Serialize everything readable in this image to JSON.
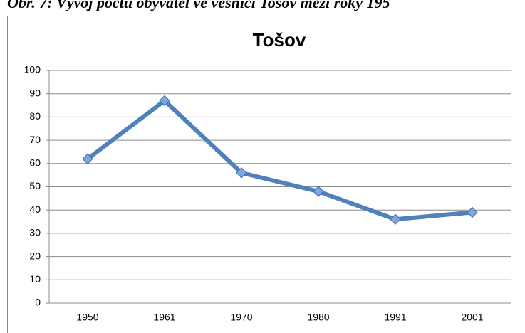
{
  "caption": "Obr. 7: Vývoj počtu obyvatel ve vesnici Tošov mezi roky 195",
  "chart_data": {
    "type": "line",
    "title": "Tošov",
    "categories": [
      "1950",
      "1961",
      "1970",
      "1980",
      "1991",
      "2001"
    ],
    "series": [
      {
        "name": "Tošov",
        "color": "#4f81bd",
        "values": [
          62,
          87,
          56,
          48,
          36,
          39
        ]
      }
    ],
    "ylim": [
      0,
      100
    ],
    "yticks": [
      0,
      10,
      20,
      30,
      40,
      50,
      60,
      70,
      80,
      90,
      100
    ],
    "grid": true,
    "legend": false
  }
}
